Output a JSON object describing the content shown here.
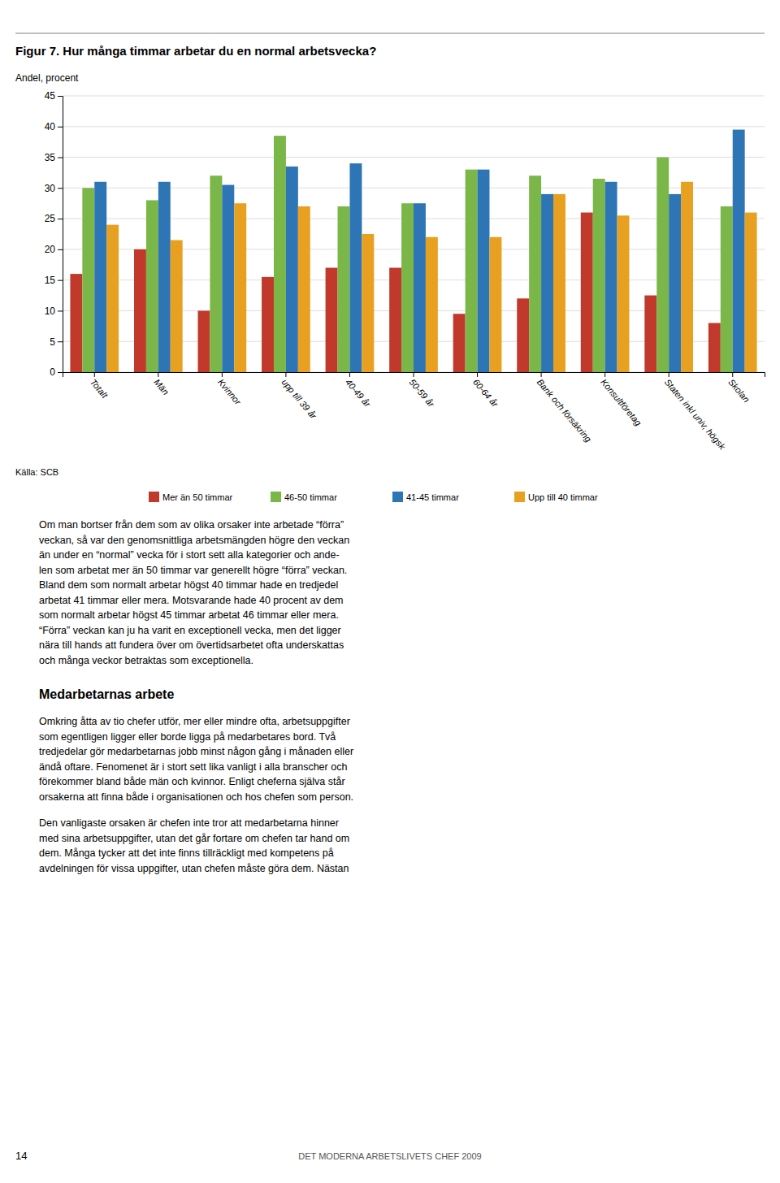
{
  "chart_data": {
    "type": "bar",
    "title": "Figur 7. Hur många timmar arbetar du en normal arbetsvecka?",
    "ylabel": "Andel, procent",
    "categories": [
      "Totalt",
      "Män",
      "Kvinnor",
      "upp till 39 år",
      "40-49 år",
      "50-59 år",
      "60-64 år",
      "Bank och försäkring",
      "Konsultföretag",
      "Staten inkl univ, högsk",
      "Skolan"
    ],
    "series": [
      {
        "name": "Mer än 50 timmar",
        "color": "#c0392b",
        "values": [
          16,
          20,
          10,
          15.5,
          17,
          17,
          9.5,
          12,
          26,
          12.5,
          8
        ]
      },
      {
        "name": "46-50 timmar",
        "color": "#7ab648",
        "values": [
          30,
          28,
          32,
          38.5,
          27,
          27.5,
          33,
          32,
          31.5,
          35,
          27
        ]
      },
      {
        "name": "41-45 timmar",
        "color": "#2e75b6",
        "values": [
          31,
          31,
          30.5,
          33.5,
          34,
          27.5,
          33,
          29,
          31,
          29,
          39.5
        ]
      },
      {
        "name": "Upp till 40 timmar",
        "color": "#e8a020",
        "values": [
          24,
          21.5,
          27.5,
          27,
          22.5,
          22,
          22,
          29,
          25.5,
          31,
          26
        ]
      }
    ],
    "ylim": [
      0,
      45
    ],
    "yticks": [
      0,
      5,
      10,
      15,
      20,
      25,
      30,
      35,
      40,
      45
    ],
    "grid": true,
    "legend": "bottom"
  },
  "source": "Källa: SCB",
  "body_text1": "Om man bortser från dem som av olika orsaker inte arbetade “förra”\nveckan, så var den genomsnittliga arbetsmängden högre den veckan\nän under en “normal” vecka för i stort sett alla kategorier och ande-\nlen som arbetat mer än 50 timmar var generellt högre “förra” veckan.\nBland dem som normalt arbetar högst 40 timmar hade en tredjedel\narbetat 41 timmar eller mera. Motsvarande hade 40 procent av dem\nsom normalt arbetar högst 45 timmar arbetat 46 timmar eller mera.\n“Förra” veckan kan ju ha varit en exceptionell vecka, men det ligger\nnära till hands att fundera över om övertidsarbetet ofta underskattas\noch många veckor betraktas som exceptionella.",
  "heading2": "Medarbetarnas arbete",
  "body_text2": "Omkring åtta av tio chefer utför, mer eller mindre ofta, arbetsuppgifter\nsom egentligen ligger eller borde ligga på medarbetares bord. Två\ntredjedelar gör medarbetarnas jobb minst någon gång i månaden eller\nändå oftare. Fenomenet är i stort sett lika vanligt i alla branscher och\nförekommer bland både män och kvinnor. Enligt cheferna själva står\norsakerna att finna både i organisationen och hos chefen som person.",
  "body_text3": "Den vanligaste orsaken är chefen inte tror att medarbetarna hinner\nmed sina arbetsuppgifter, utan det går fortare om chefen tar hand om\ndem. Många tycker att det inte finns tillräckligt med kompetens på\navdelningen för vissa uppgifter, utan chefen måste göra dem. Nästan",
  "footer_left": "14",
  "footer_right": "DET MODERNA ARBETSLIVETS CHEF 2009"
}
